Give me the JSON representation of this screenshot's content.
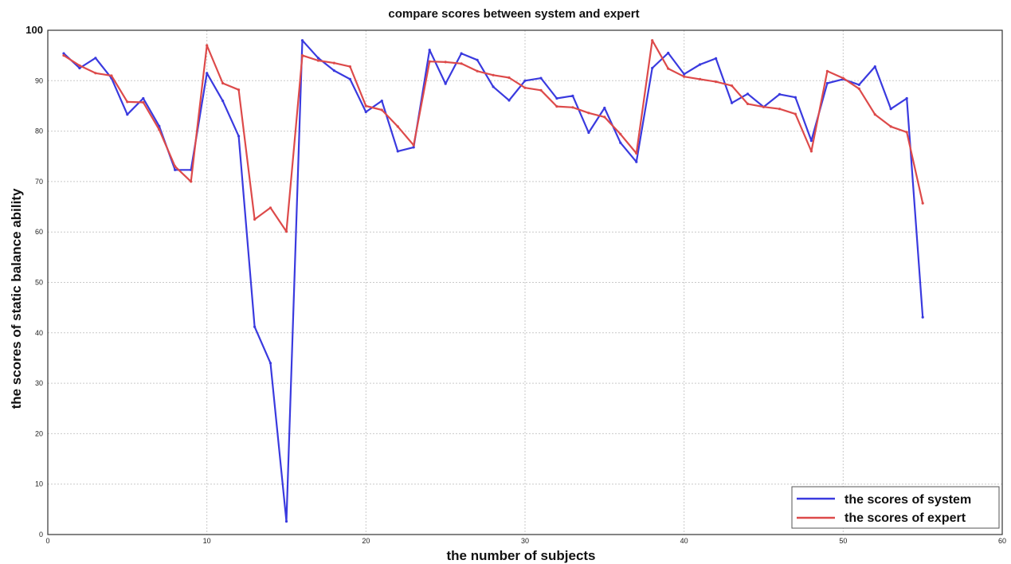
{
  "chart_data": {
    "type": "line",
    "title": "compare scores between system and expert",
    "xlabel": "the number of subjects",
    "ylabel": "the scores of static balance ability",
    "xlim": [
      0,
      60
    ],
    "ylim": [
      0,
      100
    ],
    "xticks": [
      0,
      10,
      20,
      30,
      40,
      50,
      60
    ],
    "yticks": [
      0,
      10,
      20,
      30,
      40,
      50,
      60,
      70,
      80,
      90,
      100
    ],
    "grid": true,
    "legend_position": "bottom-right",
    "x": [
      1,
      2,
      3,
      4,
      5,
      6,
      7,
      8,
      9,
      10,
      11,
      12,
      13,
      14,
      15,
      16,
      17,
      18,
      19,
      20,
      21,
      22,
      23,
      24,
      25,
      26,
      27,
      28,
      29,
      30,
      31,
      32,
      33,
      34,
      35,
      36,
      37,
      38,
      39,
      40,
      41,
      42,
      43,
      44,
      45,
      46,
      47,
      48,
      49,
      50,
      51,
      52,
      53,
      54,
      55
    ],
    "series": [
      {
        "name": "the scores of system",
        "color": "#3a3adf",
        "values": [
          95.4,
          92.5,
          94.5,
          90.5,
          83.3,
          86.5,
          81.0,
          72.3,
          72.3,
          91.5,
          86.0,
          79.0,
          41.2,
          34.0,
          2.6,
          98.0,
          94.5,
          92.0,
          90.3,
          83.8,
          86.0,
          76.0,
          76.8,
          96.1,
          89.4,
          95.4,
          94.1,
          88.8,
          86.1,
          90.0,
          90.5,
          86.5,
          87.0,
          79.7,
          84.6,
          77.7,
          73.9,
          92.5,
          95.5,
          91.3,
          93.2,
          94.4,
          85.6,
          87.4,
          84.8,
          87.3,
          86.7,
          78.1,
          89.5,
          90.3,
          89.2,
          92.8,
          84.4,
          86.5,
          43.1
        ]
      },
      {
        "name": "the scores of expert",
        "color": "#dd4a4a",
        "values": [
          95.0,
          93.0,
          91.5,
          91.0,
          85.8,
          85.7,
          80.3,
          73.0,
          70.0,
          97.0,
          89.5,
          88.2,
          62.5,
          64.8,
          60.1,
          95.0,
          94.0,
          93.5,
          92.8,
          85.0,
          84.2,
          80.9,
          77.2,
          93.8,
          93.7,
          93.4,
          91.9,
          91.1,
          90.6,
          88.6,
          88.1,
          84.9,
          84.7,
          83.6,
          82.8,
          79.4,
          75.6,
          98.0,
          92.4,
          90.8,
          90.3,
          89.8,
          89.0,
          85.4,
          84.8,
          84.4,
          83.4,
          76.0,
          91.9,
          90.5,
          88.4,
          83.3,
          80.9,
          79.8,
          65.7
        ]
      }
    ]
  }
}
